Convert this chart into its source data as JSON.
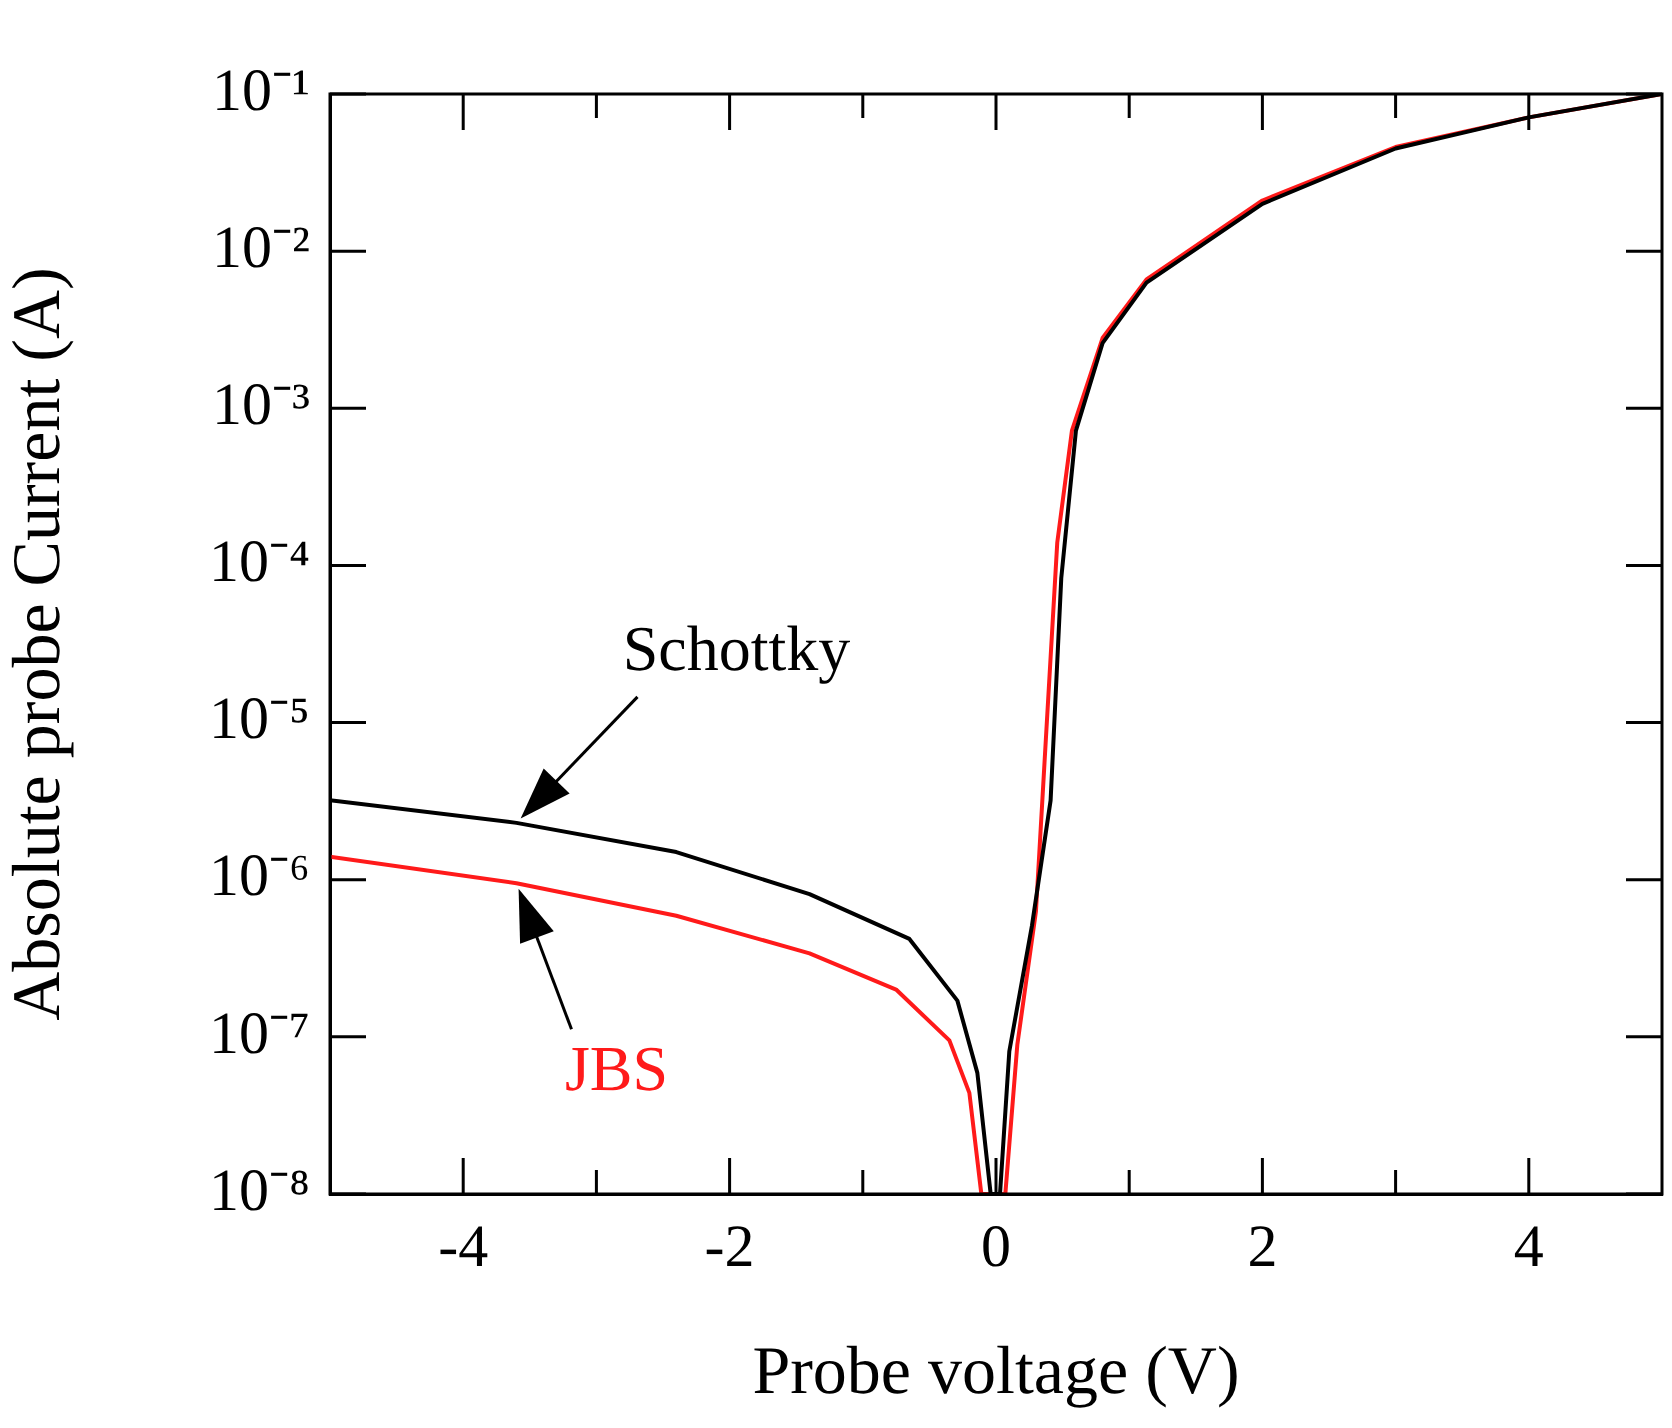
{
  "chart_data": {
    "type": "line",
    "xlabel": "Probe voltage (V)",
    "ylabel": "Absolute probe Current (A)",
    "log": "y",
    "grid": false,
    "legend": false,
    "marker": "none",
    "line_style": "solid",
    "xlim": [
      -5,
      5
    ],
    "xticks": [
      -4,
      {
        "value": -3,
        "label": null
      },
      -2,
      {
        "value": -1,
        "label": null
      },
      0,
      {
        "value": 1,
        "label": null
      },
      2,
      {
        "value": 3,
        "label": null
      },
      4
    ],
    "ylim": [
      1e-08,
      0.1
    ],
    "yticks": [
      {
        "value": 1e-08,
        "label": "10⁻⁸"
      },
      {
        "value": 1e-07,
        "label": "10⁻⁷"
      },
      {
        "value": 1e-06,
        "label": "10⁻⁶"
      },
      {
        "value": 1e-05,
        "label": "10⁻⁵"
      },
      {
        "value": 0.0001,
        "label": "10⁻⁴"
      },
      {
        "value": 0.001,
        "label": "10⁻³"
      },
      {
        "value": 0.01,
        "label": "10⁻²"
      },
      {
        "value": 0.1,
        "label": "10⁻¹"
      }
    ],
    "series": [
      {
        "color": "#000000",
        "x": [
          -5,
          -3.6,
          -2.4,
          -1.4,
          -0.65,
          -0.29,
          -0.14,
          -0.04,
          0,
          0.03,
          0.1,
          0.27,
          0.41,
          0.49,
          0.6,
          0.8,
          1.13,
          2,
          3,
          4,
          5
        ],
        "values": [
          3.2e-06,
          2.3e-06,
          1.5e-06,
          8.1e-07,
          4.2e-07,
          1.7e-07,
          5.9e-08,
          1e-08,
          1e-08,
          1e-08,
          8.1e-08,
          5.1e-07,
          3.2e-06,
          8.3e-05,
          0.00072,
          0.0026,
          0.0063,
          0.02,
          0.045,
          0.071,
          0.1
        ]
      },
      {
        "color": "#ff1a1a",
        "x": [
          -5,
          -3.6,
          -2.4,
          -1.4,
          -0.75,
          -0.35,
          -0.2,
          -0.11,
          0.07,
          0.16,
          0.3,
          0.38,
          0.46,
          0.57,
          0.8,
          1.13,
          2,
          3,
          4,
          5
        ],
        "values": [
          1.4e-06,
          9.5e-07,
          5.9e-07,
          3.4e-07,
          2e-07,
          9.5e-08,
          4.4e-08,
          1e-08,
          1e-08,
          8.9e-08,
          6.3e-07,
          9.5e-06,
          0.00014,
          0.00072,
          0.0028,
          0.0066,
          0.021,
          0.046,
          0.071,
          0.1
        ]
      }
    ],
    "annotations": [
      {
        "text": "Schottky",
        "x": -3.6,
        "y": 2.3e-06
      },
      {
        "text": "JBS",
        "x": -3.6,
        "y": 9.5e-07
      }
    ]
  }
}
